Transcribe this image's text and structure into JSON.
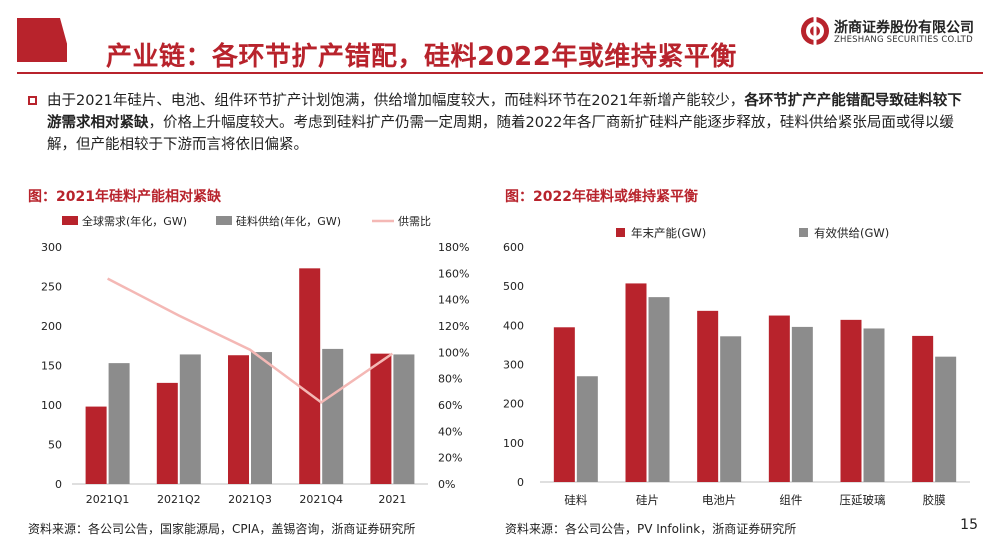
{
  "header": {
    "title": "产业链：各环节扩产错配，硅料2022年或维持紧平衡",
    "logo_cn": "浙商证券股份有限公司",
    "logo_en": "ZHESHANG SECURITIES CO.LTD"
  },
  "bullet": {
    "part1": "由于2021年硅片、电池、组件环节扩产计划饱满，供给增加幅度较大，而硅料环节在2021年新增产能较少，",
    "bold": "各环节扩产产能错配导致硅料较下游需求相对紧缺",
    "part2": "，价格上升幅度较大。考虑到硅料扩产仍需一定周期，随着2022年各厂商新扩硅料产能逐步释放，硅料供给紧张局面或得以缓解，但产能相较于下游而言将依旧偏紧。"
  },
  "colors": {
    "accent": "#b8232c",
    "gray": "#8c8c8c",
    "ratio_line": "#f4b8b5"
  },
  "chart_data": [
    {
      "type": "bar",
      "title": "图：2021年硅料产能相对紧缺",
      "categories": [
        "2021Q1",
        "2021Q2",
        "2021Q3",
        "2021Q4",
        "2021"
      ],
      "series": [
        {
          "name": "全球需求(年化，GW)",
          "values": [
            98,
            128,
            163,
            273,
            165
          ],
          "color": "#b8232c",
          "axis": "left"
        },
        {
          "name": "硅料供给(年化，GW)",
          "values": [
            153,
            164,
            167,
            171,
            164
          ],
          "color": "#8c8c8c",
          "axis": "left"
        },
        {
          "name": "供需比",
          "type": "line",
          "values": [
            1.56,
            1.28,
            1.02,
            0.62,
            0.99
          ],
          "color": "#f4b8b5",
          "axis": "right"
        }
      ],
      "ylim": [
        0,
        300
      ],
      "y_ticks": [
        "0",
        "50",
        "100",
        "150",
        "200",
        "250",
        "300"
      ],
      "y2lim": [
        0,
        1.8
      ],
      "y2_ticks": [
        "0%",
        "20%",
        "40%",
        "60%",
        "80%",
        "100%",
        "120%",
        "140%",
        "160%",
        "180%"
      ],
      "legend": "top",
      "grid": false
    },
    {
      "type": "bar",
      "title": "图：2022年硅料或维持紧平衡",
      "categories": [
        "硅料",
        "硅片",
        "电池片",
        "组件",
        "压延玻璃",
        "胶膜"
      ],
      "series": [
        {
          "name": "年末产能(GW)",
          "values": [
            395,
            507,
            437,
            425,
            414,
            373
          ],
          "color": "#b8232c"
        },
        {
          "name": "有效供给(GW)",
          "values": [
            270,
            472,
            372,
            396,
            392,
            320
          ],
          "color": "#8c8c8c"
        }
      ],
      "ylim": [
        0,
        600
      ],
      "y_ticks": [
        "0",
        "100",
        "200",
        "300",
        "400",
        "500",
        "600"
      ],
      "legend": "top",
      "grid": false
    }
  ],
  "footer": {
    "source_left": "资料来源：各公司公告，国家能源局，CPIA，盖锡咨询，浙商证券研究所",
    "source_right": "资料来源：各公司公告，PV Infolink，浙商证券研究所",
    "page": "15"
  }
}
